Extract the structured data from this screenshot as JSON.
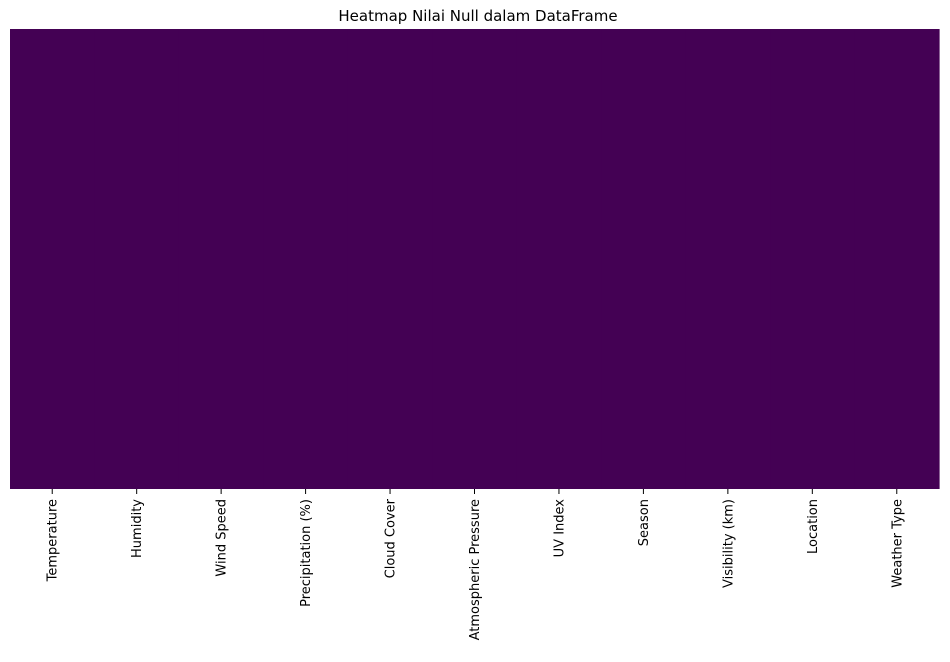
{
  "chart_data": {
    "type": "heatmap",
    "title": "Heatmap Nilai Null dalam DataFrame",
    "xlabel": "",
    "ylabel": "",
    "categories": [
      "Temperature",
      "Humidity",
      "Wind Speed",
      "Precipitation (%)",
      "Cloud Cover",
      "Atmospheric Pressure",
      "UV Index",
      "Season",
      "Visibility (km)",
      "Location",
      "Weather Type"
    ],
    "values": [
      0,
      0,
      0,
      0,
      0,
      0,
      0,
      0,
      0,
      0,
      0
    ],
    "colormap": "viridis",
    "colorbar": false,
    "y_tick_labels": false,
    "colors": {
      "null_false": "#440154",
      "null_true": "#fde725"
    }
  }
}
